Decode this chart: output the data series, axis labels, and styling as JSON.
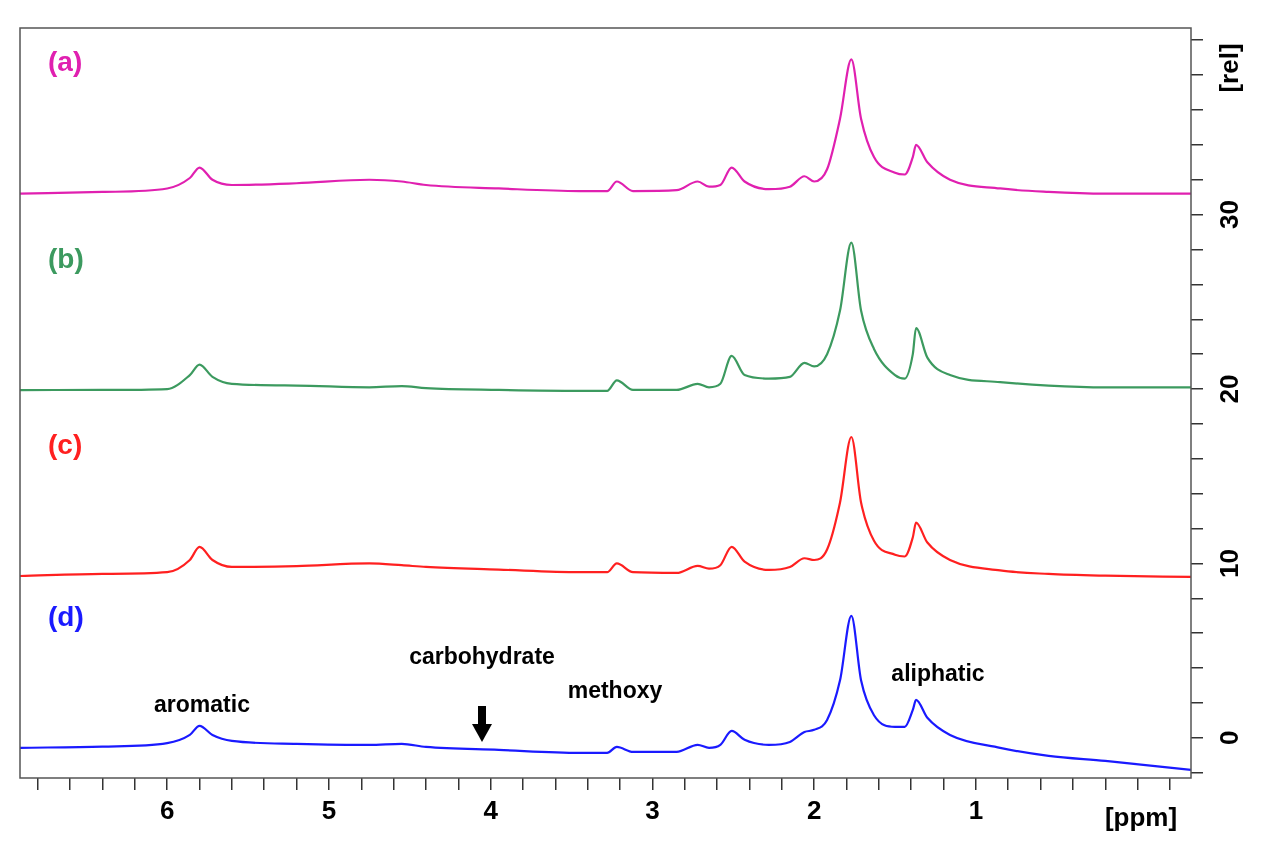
{
  "chart_data": {
    "type": "line",
    "xlabel": "[ppm]",
    "ylabel": "[rel]",
    "x": [
      6.91,
      6.4,
      6.0,
      5.86,
      5.8,
      5.72,
      5.6,
      5.2,
      4.75,
      4.55,
      4.4,
      3.95,
      3.45,
      3.28,
      3.22,
      3.12,
      2.85,
      2.72,
      2.65,
      2.58,
      2.51,
      2.43,
      2.28,
      2.15,
      2.06,
      2.0,
      1.92,
      1.84,
      1.77,
      1.71,
      1.63,
      1.5,
      1.44,
      1.39,
      1.37,
      1.3,
      1.16,
      0.85,
      0.55,
      0.2,
      -0.33
    ],
    "series": [
      {
        "name": "(a)",
        "color": "#e020b0",
        "values": [
          31.2,
          31.3,
          31.5,
          32.1,
          32.7,
          32.0,
          31.7,
          31.8,
          32.0,
          31.9,
          31.7,
          31.5,
          31.35,
          31.35,
          31.9,
          31.35,
          31.4,
          31.9,
          31.6,
          31.7,
          32.7,
          31.9,
          31.46,
          31.6,
          32.2,
          31.9,
          32.6,
          35.5,
          38.9,
          35.5,
          33.3,
          32.4,
          32.3,
          33.3,
          34.0,
          33.0,
          32.0,
          31.5,
          31.3,
          31.2,
          31.2
        ]
      },
      {
        "name": "(b)",
        "color": "#3c9a5f",
        "values": [
          19.94,
          19.95,
          20.0,
          20.8,
          21.4,
          20.7,
          20.3,
          20.2,
          20.1,
          20.17,
          20.05,
          19.95,
          19.9,
          19.9,
          20.5,
          19.95,
          19.95,
          20.3,
          20.1,
          20.3,
          21.9,
          20.8,
          20.6,
          20.7,
          21.5,
          21.3,
          22.0,
          24.5,
          28.4,
          24.5,
          22.3,
          20.8,
          20.6,
          22.0,
          23.5,
          21.8,
          20.8,
          20.4,
          20.2,
          20.1,
          20.1
        ]
      },
      {
        "name": "(c)",
        "color": "#ff2020",
        "values": [
          9.28,
          9.4,
          9.5,
          10.2,
          10.95,
          10.2,
          9.8,
          9.85,
          10.0,
          9.9,
          9.8,
          9.65,
          9.5,
          9.5,
          10.0,
          9.5,
          9.46,
          9.86,
          9.7,
          9.9,
          10.95,
          10.1,
          9.63,
          9.8,
          10.3,
          10.2,
          10.8,
          13.5,
          17.25,
          13.5,
          11.3,
          10.5,
          10.4,
          11.5,
          12.34,
          11.2,
          10.2,
          9.6,
          9.4,
          9.3,
          9.23
        ]
      },
      {
        "name": "(d)",
        "color": "#1a1aff",
        "values": [
          -0.57,
          -0.5,
          -0.3,
          0.17,
          0.69,
          0.17,
          -0.17,
          -0.34,
          -0.4,
          -0.34,
          -0.52,
          -0.69,
          -0.86,
          -0.86,
          -0.52,
          -0.8,
          -0.8,
          -0.4,
          -0.57,
          -0.4,
          0.4,
          -0.11,
          -0.4,
          -0.23,
          0.34,
          0.46,
          1.03,
          3.3,
          7.0,
          3.3,
          1.3,
          0.63,
          0.63,
          1.6,
          2.18,
          1.15,
          0.17,
          -0.57,
          -1.03,
          -1.32,
          -1.83
        ]
      }
    ],
    "xlim": [
      6.91,
      -0.33
    ],
    "xticks": [
      {
        "value": 6.8,
        "label": null
      },
      {
        "value": 6.6,
        "label": null
      },
      {
        "value": 6.4,
        "label": null
      },
      {
        "value": 6.2,
        "label": null
      },
      6,
      {
        "value": 5.8,
        "label": null
      },
      {
        "value": 5.6,
        "label": null
      },
      {
        "value": 5.4,
        "label": null
      },
      {
        "value": 5.2,
        "label": null
      },
      5,
      {
        "value": 4.8,
        "label": null
      },
      {
        "value": 4.6,
        "label": null
      },
      {
        "value": 4.4,
        "label": null
      },
      {
        "value": 4.2,
        "label": null
      },
      4,
      {
        "value": 3.8,
        "label": null
      },
      {
        "value": 3.6,
        "label": null
      },
      {
        "value": 3.4,
        "label": null
      },
      {
        "value": 3.2,
        "label": null
      },
      3,
      {
        "value": 2.8,
        "label": null
      },
      {
        "value": 2.6,
        "label": null
      },
      {
        "value": 2.4,
        "label": null
      },
      {
        "value": 2.2,
        "label": null
      },
      2,
      {
        "value": 1.8,
        "label": null
      },
      {
        "value": 1.6,
        "label": null
      },
      {
        "value": 1.4,
        "label": null
      },
      {
        "value": 1.2,
        "label": null
      },
      1,
      {
        "value": 0.8,
        "label": null
      },
      {
        "value": 0.6,
        "label": null
      },
      {
        "value": 0.4,
        "label": null
      },
      {
        "value": 0.2,
        "label": null
      },
      {
        "value": 0,
        "label": null
      },
      {
        "value": -0.2,
        "label": null
      }
    ],
    "ylim": [
      -2.3,
      40.7
    ],
    "yticks": [
      {
        "value": -2,
        "label": null
      },
      0,
      {
        "value": 2,
        "label": null
      },
      {
        "value": 4,
        "label": null
      },
      {
        "value": 6,
        "label": null
      },
      {
        "value": 8,
        "label": null
      },
      10,
      {
        "value": 12,
        "label": null
      },
      {
        "value": 14,
        "label": null
      },
      {
        "value": 16,
        "label": null
      },
      {
        "value": 18,
        "label": null
      },
      20,
      {
        "value": 22,
        "label": null
      },
      {
        "value": 24,
        "label": null
      },
      {
        "value": 26,
        "label": null
      },
      {
        "value": 28,
        "label": null
      },
      30,
      {
        "value": 32,
        "label": null
      },
      {
        "value": 34,
        "label": null
      },
      {
        "value": 36,
        "label": null
      },
      {
        "value": 38,
        "label": null
      },
      {
        "value": 40,
        "label": null
      }
    ],
    "annotations": [
      "aromatic",
      "carbohydrate",
      "methoxy",
      "aliphatic"
    ],
    "legend": false,
    "grid": false
  }
}
